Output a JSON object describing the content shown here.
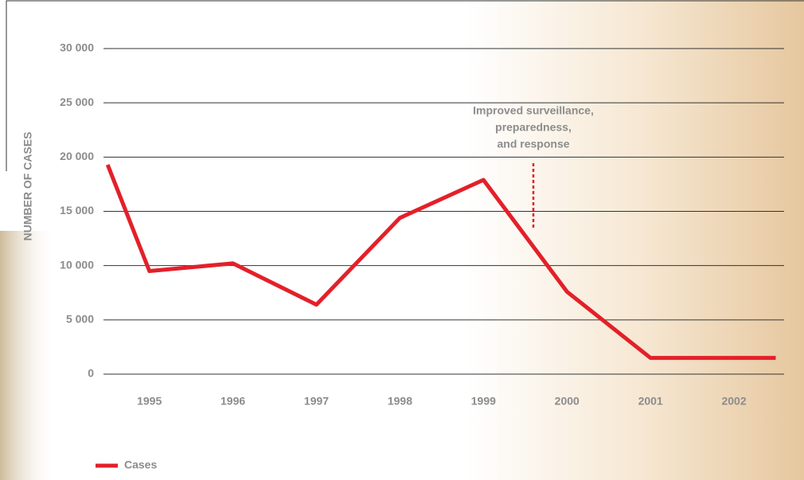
{
  "chart_data": {
    "type": "line",
    "y_label": "NUMBER OF CASES",
    "annotation": [
      "Improved surveillance,",
      "preparedness,",
      "and response"
    ],
    "x": [
      1994.5,
      1995,
      1996,
      1997,
      1998,
      1999,
      2000,
      2001,
      2002.5
    ],
    "xlim": [
      1994.45,
      2002.6
    ],
    "xticks": [
      1995,
      1996,
      1997,
      1998,
      1999,
      2000,
      2001,
      2002
    ],
    "ylim": [
      0,
      30000
    ],
    "yticks": [
      0,
      {
        "value": 5000,
        "label": "5 000"
      },
      {
        "value": 10000,
        "label": "10 000"
      },
      {
        "value": 15000,
        "label": "15 000"
      },
      {
        "value": 20000,
        "label": "20 000"
      },
      {
        "value": 25000,
        "label": "25 000"
      },
      {
        "value": 30000,
        "label": "30 000"
      }
    ],
    "grid": true,
    "series": [
      {
        "name": "Cases",
        "color": "#e3202a",
        "values": [
          19300,
          9500,
          10200,
          6400,
          14400,
          17900,
          7600,
          1500,
          1500
        ]
      }
    ]
  }
}
